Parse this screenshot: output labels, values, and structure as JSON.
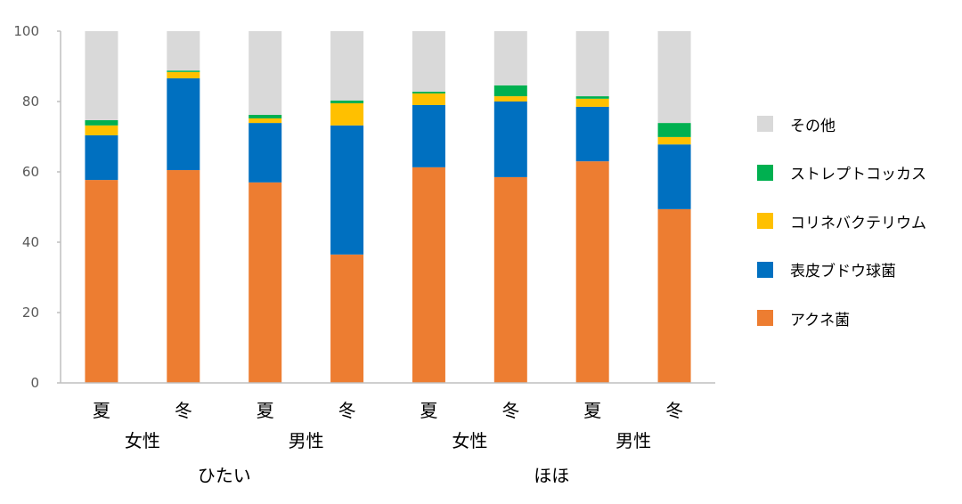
{
  "chart_data": {
    "type": "bar",
    "stacked": true,
    "title": "",
    "xlabel": "",
    "ylabel": "",
    "ylim": [
      0,
      100
    ],
    "yticks": [
      0,
      20,
      40,
      60,
      80,
      100
    ],
    "grid": false,
    "legend_position": "right",
    "categories": [
      "夏",
      "冬",
      "夏",
      "冬",
      "夏",
      "冬",
      "夏",
      "冬"
    ],
    "category_groups_level2": [
      {
        "label": "女性",
        "span": [
          0,
          1
        ]
      },
      {
        "label": "男性",
        "span": [
          2,
          3
        ]
      },
      {
        "label": "女性",
        "span": [
          4,
          5
        ]
      },
      {
        "label": "男性",
        "span": [
          6,
          7
        ]
      }
    ],
    "category_groups_level3": [
      {
        "label": "ひたい",
        "span": [
          0,
          3
        ]
      },
      {
        "label": "ほほ",
        "span": [
          4,
          7
        ]
      }
    ],
    "series": [
      {
        "name": "アクネ菌",
        "color": "#ED7D31",
        "values": [
          57.7,
          60.5,
          57.0,
          36.5,
          61.3,
          58.5,
          63.0,
          49.4
        ]
      },
      {
        "name": "表皮ブドウ球菌",
        "color": "#0070C0",
        "values": [
          12.7,
          26.1,
          16.9,
          36.7,
          17.7,
          21.5,
          15.5,
          18.4
        ]
      },
      {
        "name": "コリネバクテリウム",
        "color": "#FFC000",
        "values": [
          2.8,
          1.8,
          1.3,
          6.3,
          3.3,
          1.5,
          2.3,
          2.1
        ]
      },
      {
        "name": "ストレプトコッカス",
        "color": "#00B050",
        "values": [
          1.5,
          0.4,
          1.0,
          0.8,
          0.5,
          3.1,
          0.7,
          4.0
        ]
      },
      {
        "name": "その他",
        "color": "#D9D9D9",
        "values": [
          25.3,
          11.2,
          23.8,
          19.7,
          17.2,
          15.4,
          18.5,
          26.1
        ]
      }
    ]
  },
  "legend": {
    "items": [
      {
        "label": "その他",
        "color": "#D9D9D9"
      },
      {
        "label": "ストレプトコッカス",
        "color": "#00B050"
      },
      {
        "label": "コリネバクテリウム",
        "color": "#FFC000"
      },
      {
        "label": "表皮ブドウ球菌",
        "color": "#0070C0"
      },
      {
        "label": "アクネ菌",
        "color": "#ED7D31"
      }
    ]
  }
}
